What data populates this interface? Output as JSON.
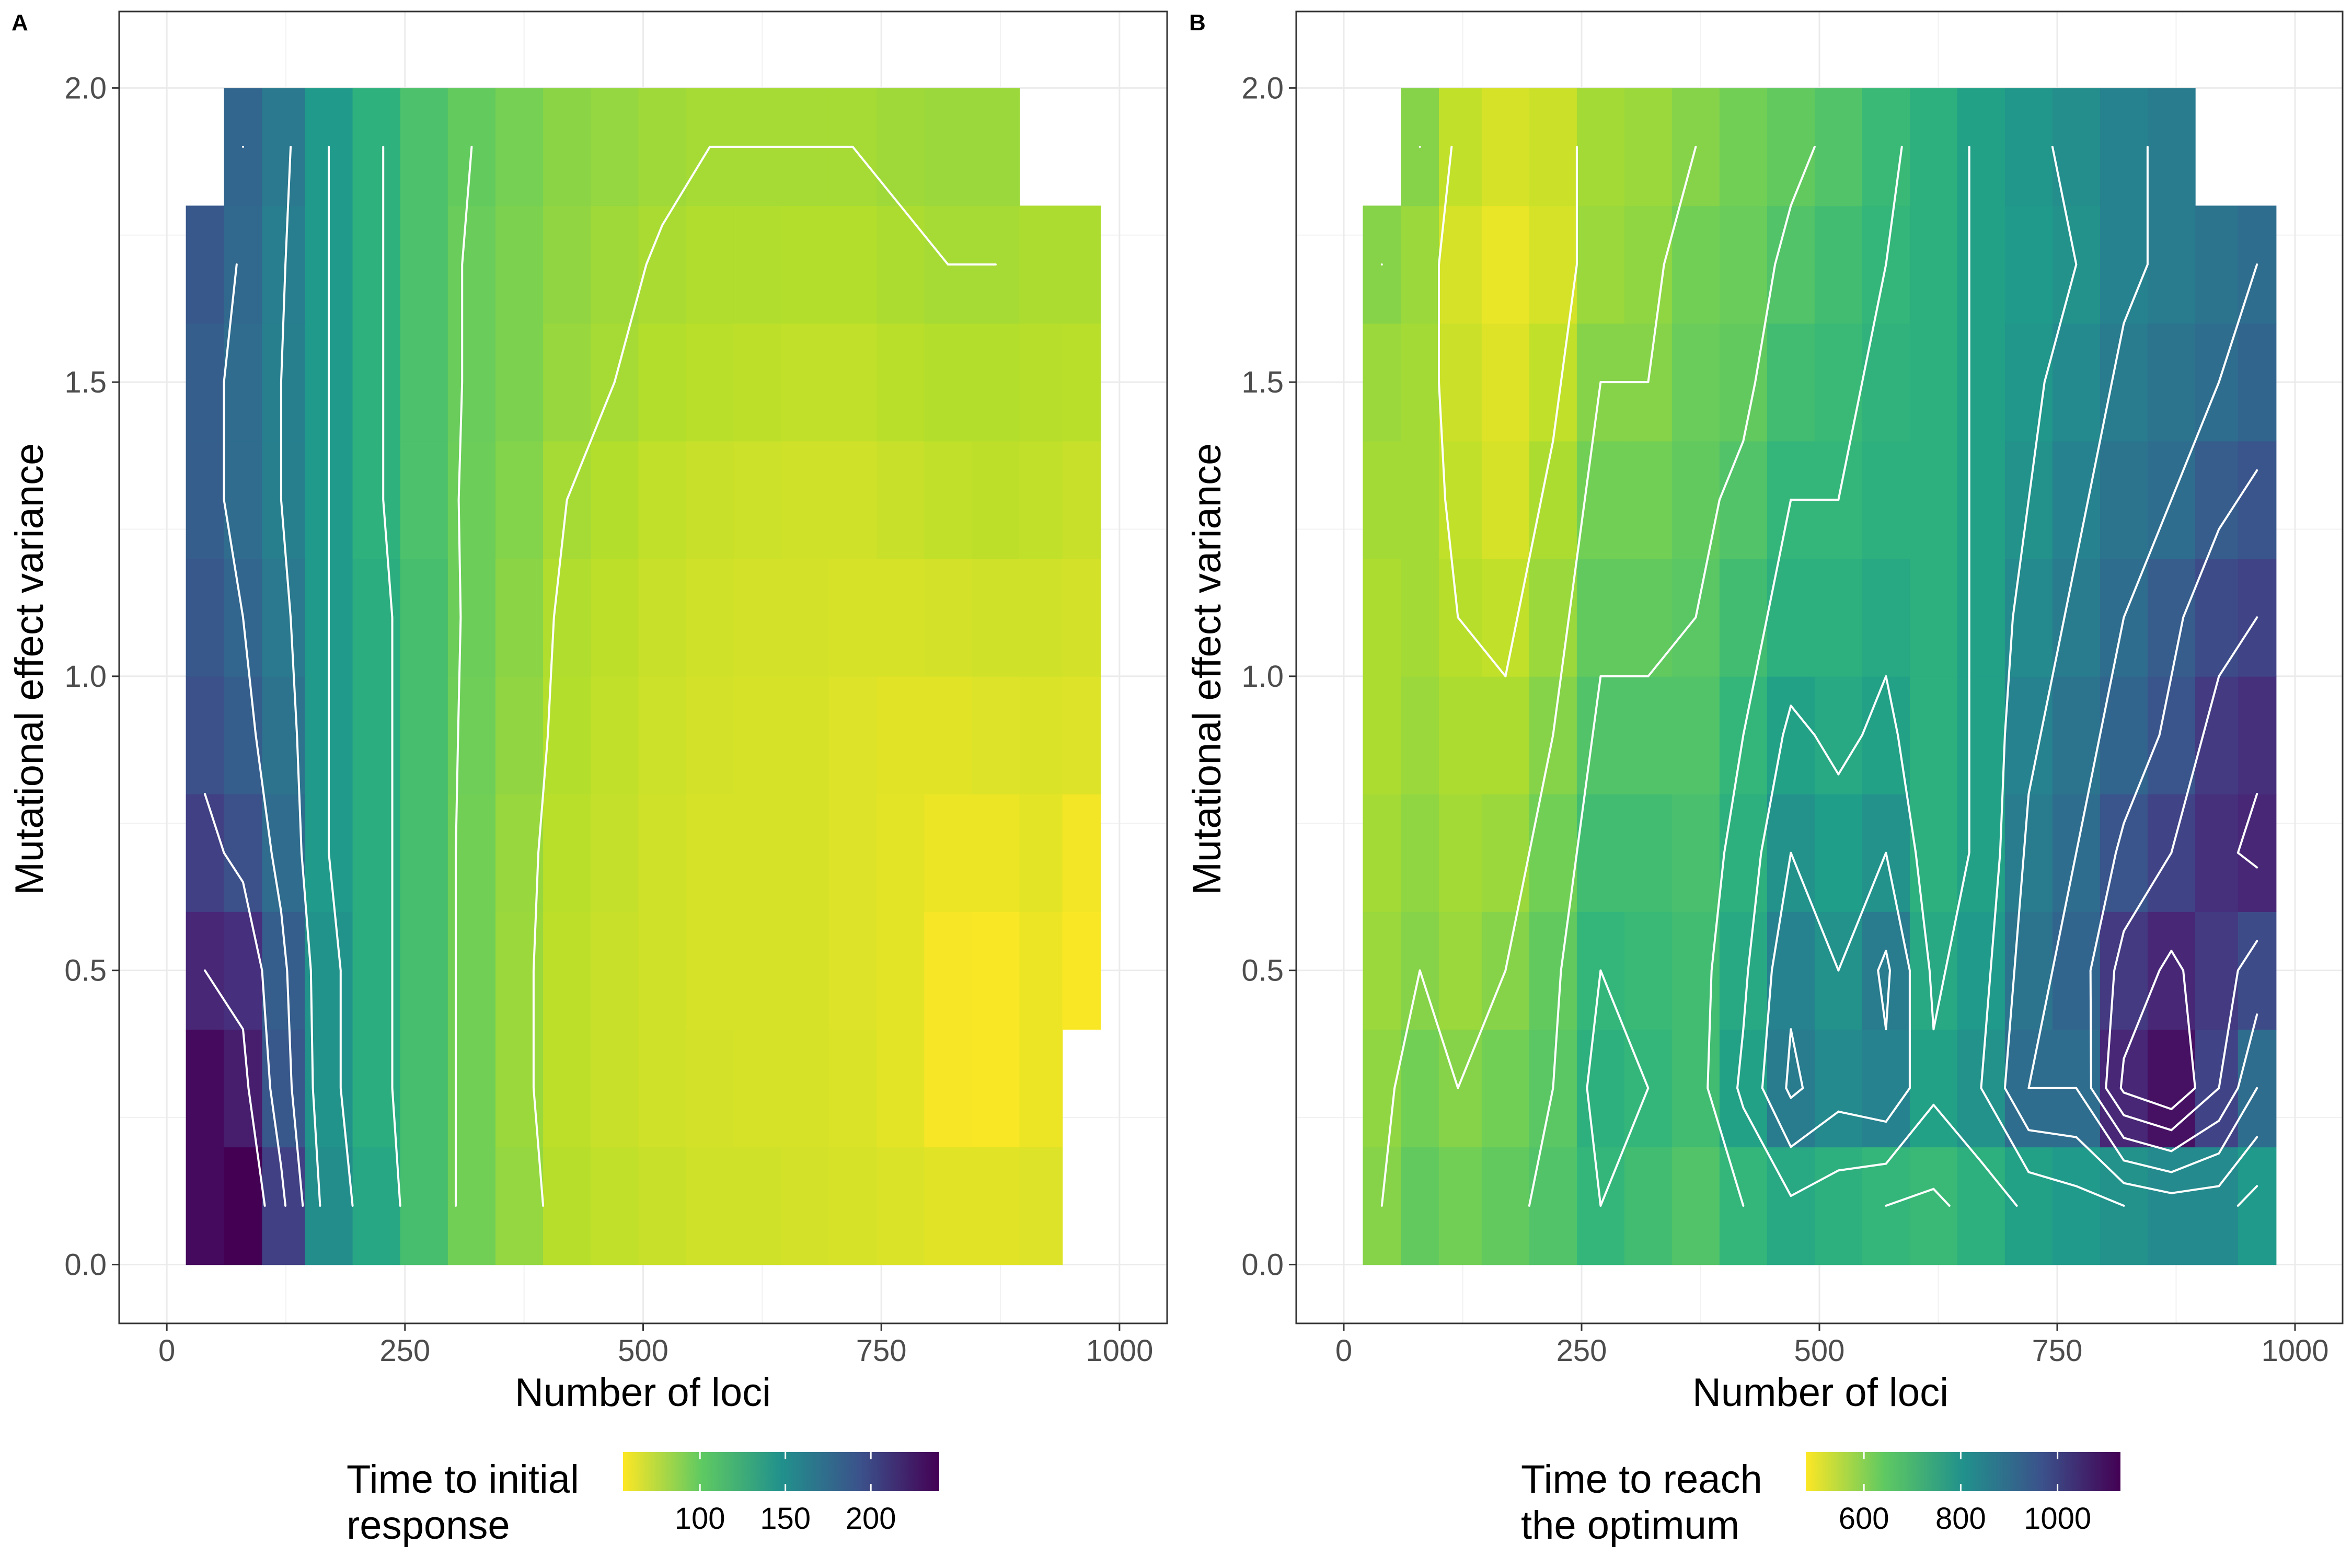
{
  "chart_data": [
    {
      "panel": "A",
      "type": "heatmap",
      "xlabel": "Number of loci",
      "ylabel": "Mutational effect variance",
      "xlim": [
        -50,
        1050
      ],
      "ylim": [
        -0.1,
        2.13
      ],
      "x_ticks": [
        0,
        250,
        500,
        750,
        1000
      ],
      "x_tick_labels": [
        "0",
        "250",
        "500",
        "750",
        "1000"
      ],
      "y_ticks": [
        0.0,
        0.5,
        1.0,
        1.5,
        2.0
      ],
      "y_tick_labels": [
        "0.0",
        "0.5",
        "1.0",
        "1.5",
        "2.0"
      ],
      "grid": true,
      "colormap": "viridis (reversed: low = yellow, high = purple)",
      "legend": {
        "title_lines": [
          "Time to initial",
          "response"
        ],
        "position": "bottom",
        "range": [
          55,
          240
        ],
        "ticks": [
          100,
          150,
          200
        ],
        "tick_labels": [
          "100",
          "150",
          "200"
        ]
      },
      "x_centers": [
        40,
        80,
        120,
        170,
        220,
        270,
        320,
        370,
        420,
        470,
        520,
        570,
        620,
        670,
        720,
        770,
        820,
        870,
        920,
        960
      ],
      "y_centers": [
        0.1,
        0.3,
        0.5,
        0.7,
        0.9,
        1.1,
        1.3,
        1.5,
        1.7,
        1.9
      ],
      "values": [
        [
          235,
          240,
          205,
          150,
          130,
          110,
          95,
          85,
          75,
          72,
          70,
          68,
          68,
          67,
          66,
          65,
          63,
          63,
          64,
          null
        ],
        [
          235,
          225,
          190,
          145,
          125,
          110,
          95,
          83,
          73,
          70,
          68,
          67,
          66,
          66,
          65,
          62,
          57,
          56,
          60,
          null
        ],
        [
          220,
          215,
          185,
          145,
          125,
          110,
          95,
          83,
          73,
          70,
          68,
          66,
          66,
          66,
          64,
          62,
          57,
          56,
          60,
          56
        ],
        [
          205,
          195,
          175,
          140,
          125,
          110,
          95,
          84,
          74,
          71,
          68,
          66,
          66,
          66,
          64,
          62,
          60,
          60,
          62,
          58
        ],
        [
          195,
          185,
          170,
          140,
          125,
          110,
          96,
          86,
          76,
          72,
          69,
          67,
          66,
          66,
          64,
          63,
          63,
          64,
          65,
          64
        ],
        [
          190,
          180,
          165,
          140,
          125,
          110,
          97,
          88,
          77,
          73,
          70,
          68,
          67,
          67,
          66,
          66,
          67,
          68,
          68,
          67
        ],
        [
          185,
          175,
          160,
          140,
          122,
          108,
          97,
          90,
          80,
          76,
          72,
          70,
          69,
          68,
          68,
          70,
          72,
          73,
          72,
          70
        ],
        [
          185,
          175,
          160,
          140,
          122,
          108,
          98,
          92,
          84,
          80,
          76,
          74,
          73,
          72,
          72,
          74,
          76,
          76,
          75,
          74
        ],
        [
          190,
          178,
          162,
          140,
          122,
          108,
          98,
          92,
          86,
          82,
          79,
          77,
          77,
          76,
          76,
          78,
          80,
          80,
          78,
          78
        ],
        [
          null,
          180,
          165,
          140,
          122,
          108,
          100,
          94,
          88,
          85,
          82,
          80,
          80,
          80,
          80,
          82,
          83,
          83,
          null,
          null
        ]
      ],
      "contour_levels": [
        80,
        100,
        120,
        140,
        160,
        180,
        200,
        220
      ]
    },
    {
      "panel": "B",
      "type": "heatmap",
      "xlabel": "Number of loci",
      "ylabel": "Mutational effect variance",
      "xlim": [
        -50,
        1050
      ],
      "ylim": [
        -0.1,
        2.13
      ],
      "x_ticks": [
        0,
        250,
        500,
        750,
        1000
      ],
      "x_tick_labels": [
        "0",
        "250",
        "500",
        "750",
        "1000"
      ],
      "y_ticks": [
        0.0,
        0.5,
        1.0,
        1.5,
        2.0
      ],
      "y_tick_labels": [
        "0.0",
        "0.5",
        "1.0",
        "1.5",
        "2.0"
      ],
      "grid": true,
      "colormap": "viridis (reversed: low = yellow, high = purple)",
      "legend": {
        "title_lines": [
          "Time to reach",
          "the optimum"
        ],
        "position": "bottom",
        "range": [
          480,
          1130
        ],
        "ticks": [
          600,
          800,
          1000
        ],
        "tick_labels": [
          "600",
          "800",
          "1000"
        ]
      },
      "x_centers": [
        40,
        80,
        120,
        170,
        220,
        270,
        320,
        370,
        420,
        470,
        520,
        570,
        620,
        670,
        720,
        770,
        820,
        870,
        920,
        960
      ],
      "y_centers": [
        0.1,
        0.3,
        0.5,
        0.7,
        0.9,
        1.1,
        1.3,
        1.5,
        1.7,
        1.9
      ],
      "values": [
        [
          600,
          640,
          620,
          640,
          660,
          700,
          680,
          660,
          700,
          740,
          720,
          700,
          690,
          720,
          760,
          780,
          800,
          820,
          820,
          780
        ],
        [
          590,
          620,
          600,
          620,
          650,
          720,
          700,
          680,
          760,
          860,
          820,
          840,
          760,
          800,
          900,
          900,
          1060,
          1100,
          1000,
          900
        ],
        [
          580,
          600,
          580,
          600,
          640,
          700,
          690,
          680,
          740,
          840,
          800,
          860,
          740,
          780,
          880,
          920,
          1020,
          1060,
          1020,
          980
        ],
        [
          570,
          590,
          570,
          580,
          620,
          680,
          680,
          670,
          720,
          800,
          770,
          800,
          720,
          760,
          860,
          900,
          960,
          1000,
          1040,
          1060
        ],
        [
          560,
          580,
          560,
          560,
          600,
          660,
          660,
          660,
          700,
          760,
          740,
          760,
          720,
          760,
          840,
          880,
          920,
          960,
          1020,
          1040
        ],
        [
          560,
          570,
          550,
          540,
          580,
          640,
          640,
          650,
          680,
          720,
          720,
          740,
          720,
          760,
          820,
          860,
          900,
          940,
          980,
          1000
        ],
        [
          570,
          570,
          540,
          520,
          560,
          620,
          620,
          640,
          660,
          700,
          700,
          720,
          720,
          760,
          800,
          840,
          880,
          900,
          940,
          960
        ],
        [
          580,
          570,
          530,
          510,
          540,
          600,
          600,
          630,
          640,
          680,
          690,
          710,
          720,
          760,
          790,
          820,
          860,
          880,
          900,
          920
        ],
        [
          600,
          580,
          520,
          500,
          520,
          580,
          590,
          620,
          630,
          660,
          680,
          700,
          720,
          760,
          780,
          800,
          840,
          860,
          880,
          900
        ],
        [
          null,
          600,
          540,
          520,
          530,
          570,
          580,
          600,
          620,
          640,
          660,
          690,
          720,
          760,
          790,
          810,
          840,
          860,
          null,
          null
        ]
      ],
      "contour_levels": [
        550,
        600,
        650,
        700,
        750,
        800,
        850,
        900,
        950,
        1000,
        1050
      ]
    }
  ]
}
